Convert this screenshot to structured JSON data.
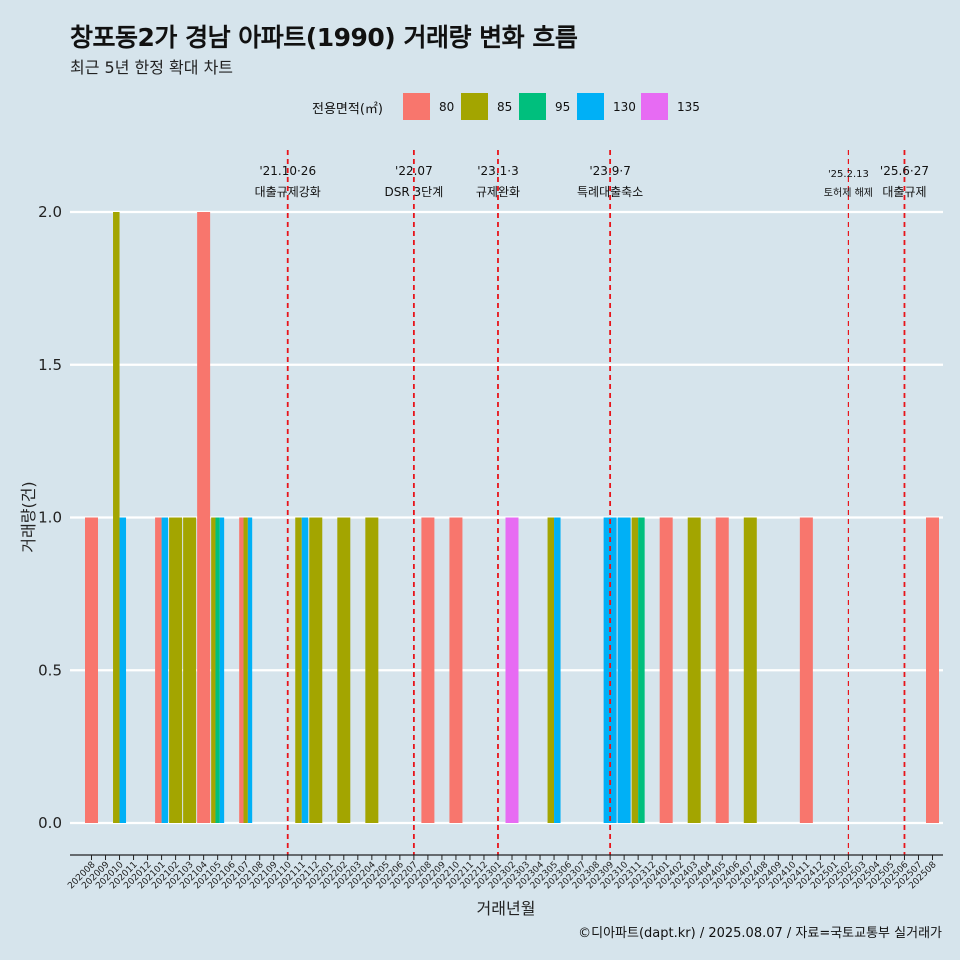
{
  "header": {
    "title": "창포동2가 경남 아파트(1990) 거래량 변화 흐름",
    "subtitle": "최근 5년 한정 확대 차트"
  },
  "legend": {
    "title": "전용면적(㎡)",
    "items": [
      {
        "label": "80",
        "color": "#f8766d"
      },
      {
        "label": "85",
        "color": "#a3a500"
      },
      {
        "label": "95",
        "color": "#00bf7d"
      },
      {
        "label": "130",
        "color": "#00b0f6"
      },
      {
        "label": "135",
        "color": "#e76bf3"
      }
    ]
  },
  "caption": "©디아파트(dapt.kr) / 2025.08.07 / 자료=국토교통부 실거래가",
  "chart_data": {
    "type": "bar",
    "xlabel": "거래년월",
    "ylabel": "거래량(건)",
    "ylim": [
      0,
      2
    ],
    "yticks": [
      "0.0",
      "0.5",
      "1.0",
      "1.5",
      "2.0"
    ],
    "categories": [
      "202008",
      "202009",
      "202010",
      "202011",
      "202012",
      "202101",
      "202102",
      "202103",
      "202104",
      "202105",
      "202106",
      "202107",
      "202108",
      "202109",
      "202110",
      "202111",
      "202112",
      "202201",
      "202202",
      "202203",
      "202204",
      "202205",
      "202206",
      "202207",
      "202208",
      "202209",
      "202210",
      "202211",
      "202212",
      "202301",
      "202302",
      "202303",
      "202304",
      "202305",
      "202306",
      "202307",
      "202308",
      "202309",
      "202310",
      "202311",
      "202312",
      "202401",
      "202402",
      "202403",
      "202404",
      "202405",
      "202406",
      "202407",
      "202408",
      "202409",
      "202410",
      "202411",
      "202412",
      "202501",
      "202502",
      "202503",
      "202504",
      "202505",
      "202506",
      "202507",
      "202508"
    ],
    "series": [
      {
        "name": "80",
        "values": [
          1,
          0,
          0,
          0,
          0,
          1,
          0,
          0,
          2,
          0,
          0,
          1,
          0,
          0,
          0,
          0,
          0,
          0,
          0,
          0,
          0,
          0,
          0,
          0,
          1,
          0,
          1,
          0,
          0,
          0,
          0,
          0,
          0,
          0,
          0,
          0,
          0,
          0,
          0,
          0,
          0,
          1,
          0,
          0,
          0,
          1,
          0,
          0,
          0,
          0,
          0,
          1,
          0,
          0,
          0,
          0,
          0,
          0,
          0,
          0,
          1
        ]
      },
      {
        "name": "85",
        "values": [
          0,
          0,
          2,
          0,
          0,
          0,
          1,
          1,
          0,
          1,
          0,
          1,
          0,
          0,
          0,
          1,
          1,
          0,
          1,
          0,
          1,
          0,
          0,
          0,
          0,
          0,
          0,
          0,
          0,
          0,
          0,
          0,
          0,
          1,
          0,
          0,
          0,
          0,
          0,
          1,
          0,
          0,
          0,
          1,
          0,
          0,
          0,
          1,
          0,
          0,
          0,
          0,
          0,
          0,
          0,
          0,
          0,
          0,
          0,
          0,
          0
        ]
      },
      {
        "name": "95",
        "values": [
          0,
          0,
          0,
          0,
          0,
          0,
          0,
          0,
          0,
          1,
          0,
          0,
          0,
          0,
          0,
          0,
          0,
          0,
          0,
          0,
          0,
          0,
          0,
          0,
          0,
          0,
          0,
          0,
          0,
          0,
          0,
          0,
          0,
          0,
          0,
          0,
          0,
          0,
          0,
          1,
          0,
          0,
          0,
          0,
          0,
          0,
          0,
          0,
          0,
          0,
          0,
          0,
          0,
          0,
          0,
          0,
          0,
          0,
          0,
          0,
          0
        ]
      },
      {
        "name": "130",
        "values": [
          0,
          0,
          1,
          0,
          0,
          1,
          0,
          0,
          0,
          1,
          0,
          1,
          0,
          0,
          0,
          1,
          0,
          0,
          0,
          0,
          0,
          0,
          0,
          0,
          0,
          0,
          0,
          0,
          0,
          0,
          0,
          0,
          0,
          1,
          0,
          0,
          0,
          1,
          1,
          0,
          0,
          0,
          0,
          0,
          0,
          0,
          0,
          0,
          0,
          0,
          0,
          0,
          0,
          0,
          0,
          0,
          0,
          0,
          0,
          0,
          0
        ]
      },
      {
        "name": "135",
        "values": [
          0,
          0,
          0,
          0,
          0,
          0,
          0,
          0,
          0,
          0,
          0,
          0,
          0,
          0,
          0,
          0,
          0,
          0,
          0,
          0,
          0,
          0,
          0,
          0,
          0,
          0,
          0,
          0,
          0,
          0,
          1,
          0,
          0,
          0,
          0,
          0,
          0,
          0,
          0,
          0,
          0,
          0,
          0,
          0,
          0,
          0,
          0,
          0,
          0,
          0,
          0,
          0,
          0,
          0,
          0,
          0,
          0,
          0,
          0,
          0,
          0
        ]
      }
    ],
    "events": [
      {
        "date": "'21.10·26",
        "label": "대출규제강화",
        "at": "202110",
        "small": false
      },
      {
        "date": "'22.07",
        "label": "DSR 3단계",
        "at": "202207",
        "small": false
      },
      {
        "date": "'23.1·3",
        "label": "규제완화",
        "at": "202301",
        "small": false
      },
      {
        "date": "'23.9·7",
        "label": "특례대출축소",
        "at": "202309",
        "small": false
      },
      {
        "date": "'25.2.13",
        "label": "토허제 해제",
        "at": "202502",
        "small": true
      },
      {
        "date": "'25.6·27",
        "label": "대출규제",
        "at": "202506",
        "small": false
      }
    ]
  }
}
